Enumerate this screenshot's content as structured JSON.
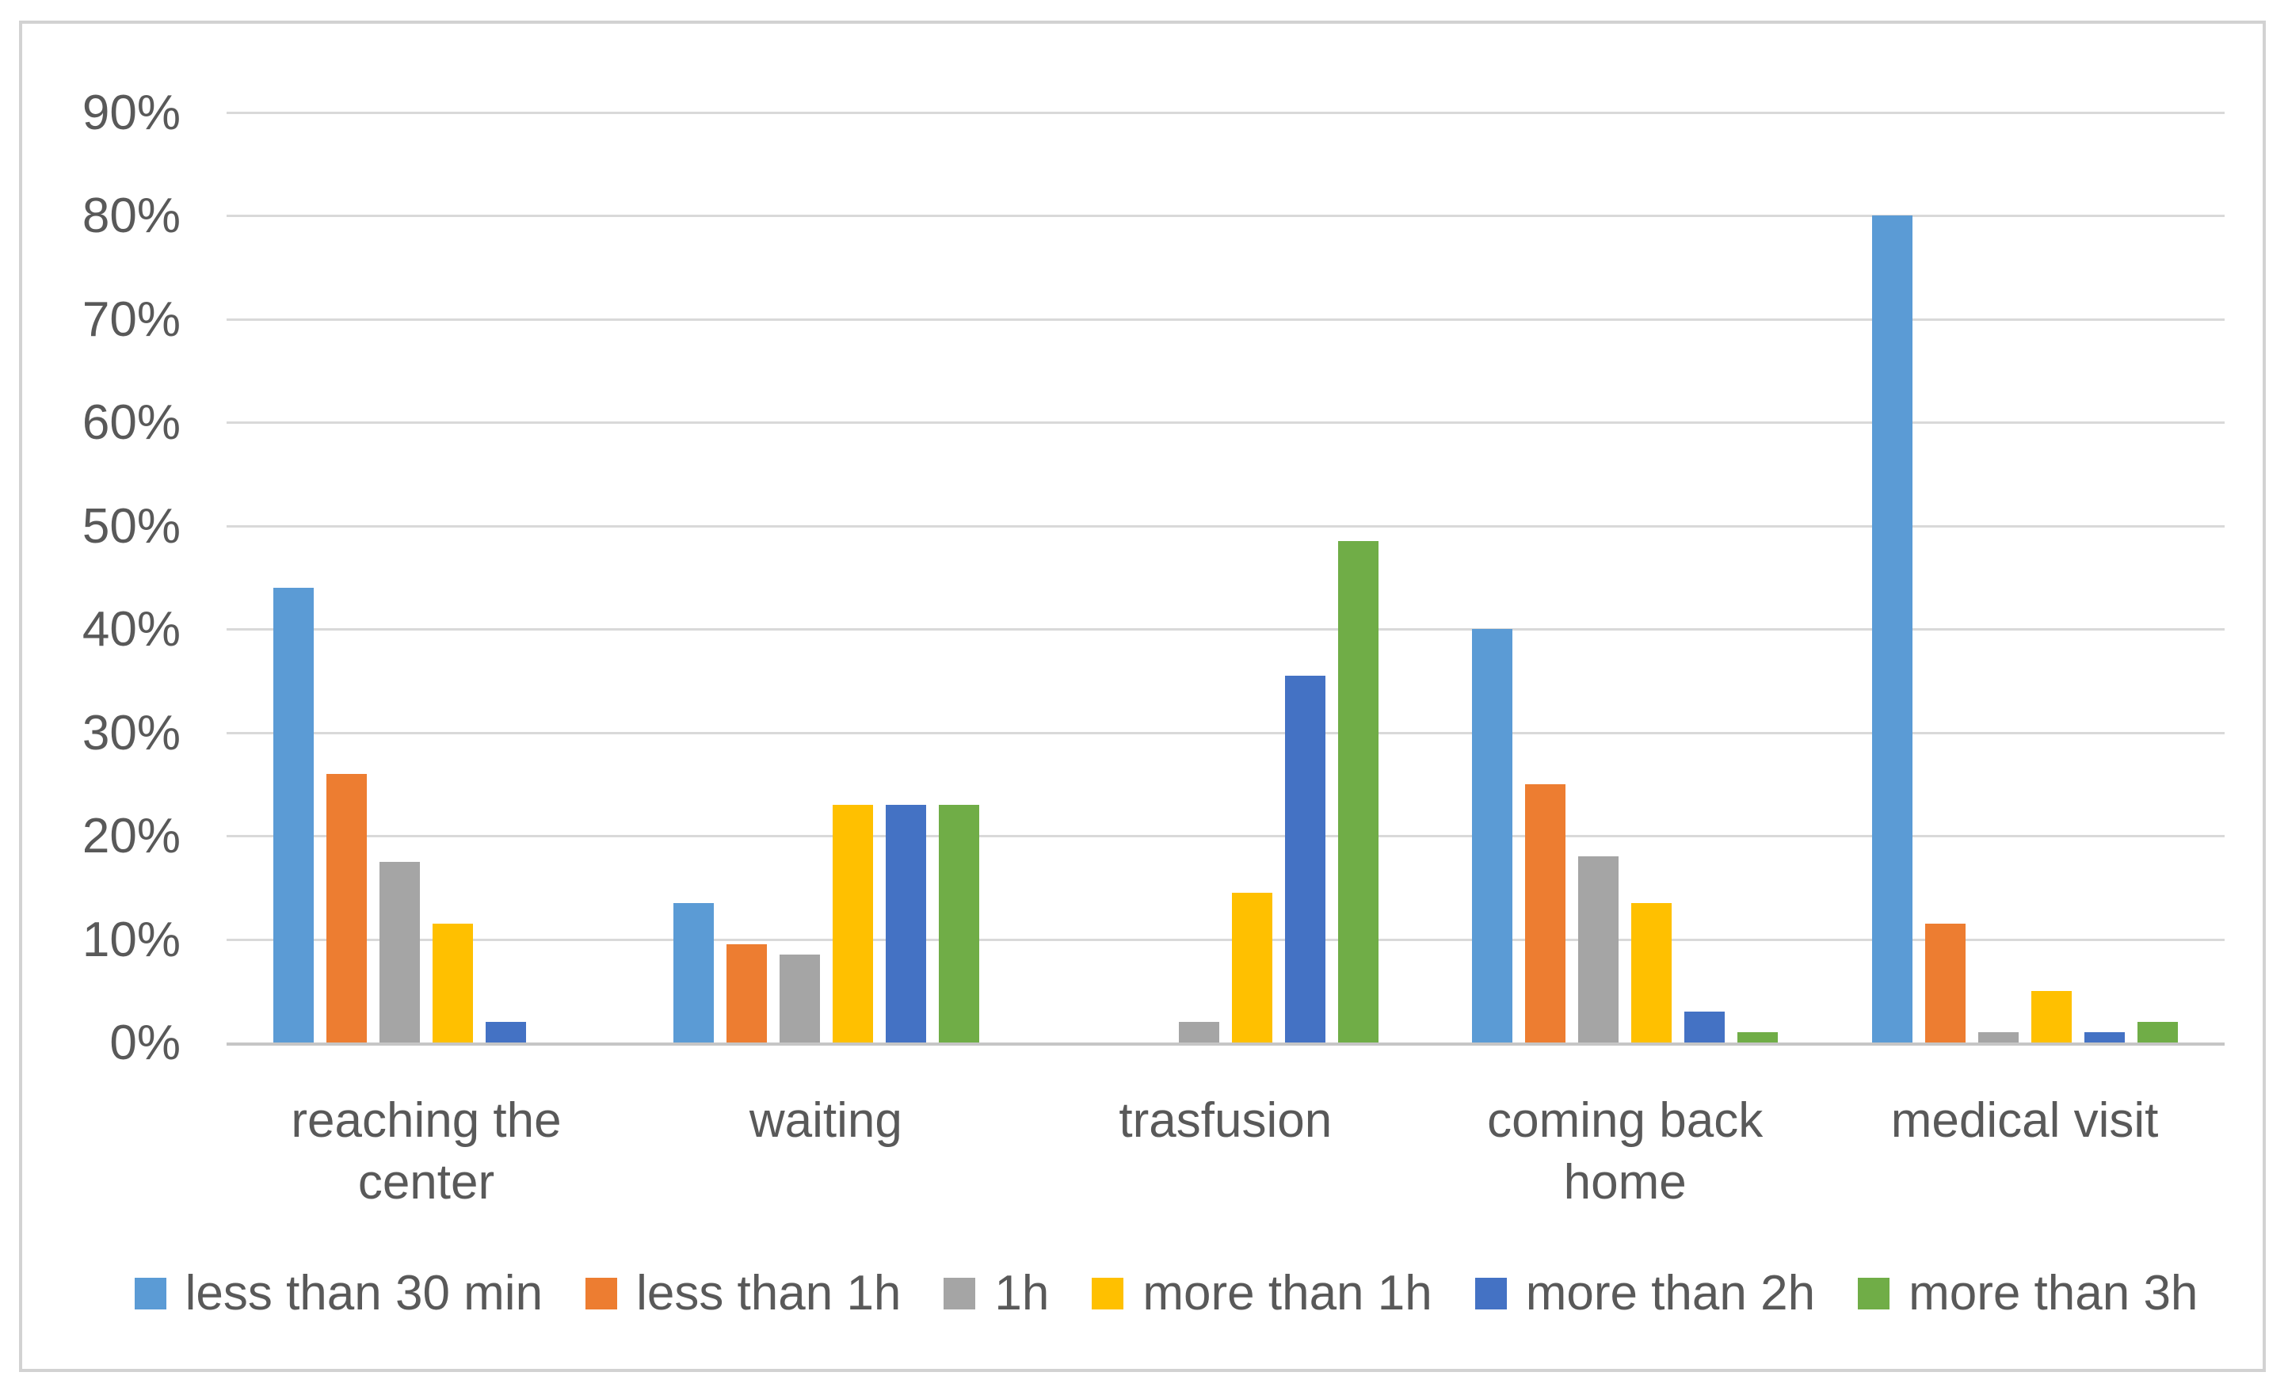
{
  "chart_data": {
    "type": "bar",
    "title": "",
    "xlabel": "",
    "ylabel": "",
    "categories": [
      "reaching the center",
      "waiting",
      "trasfusion",
      "coming back home",
      "medical visit"
    ],
    "series": [
      {
        "name": "less than 30 min",
        "color": "#5B9BD5",
        "values": [
          44,
          13.5,
          0,
          40,
          80
        ]
      },
      {
        "name": "less than 1h",
        "color": "#ED7D31",
        "values": [
          26,
          9.5,
          0,
          25,
          11.5
        ]
      },
      {
        "name": "1h",
        "color": "#A5A5A5",
        "values": [
          17.5,
          8.5,
          2,
          18,
          1
        ]
      },
      {
        "name": "more than 1h",
        "color": "#FFC000",
        "values": [
          11.5,
          23,
          14.5,
          13.5,
          5
        ]
      },
      {
        "name": "more than 2h",
        "color": "#4472C4",
        "values": [
          2,
          23,
          35.5,
          3,
          1
        ]
      },
      {
        "name": "more than 3h",
        "color": "#70AD47",
        "values": [
          0,
          23,
          48.5,
          1,
          2
        ]
      }
    ],
    "y_axis": {
      "min": 0,
      "max": 90,
      "tick_step": 10,
      "tick_labels": [
        "0%",
        "10%",
        "20%",
        "30%",
        "40%",
        "50%",
        "60%",
        "70%",
        "80%",
        "90%"
      ],
      "grid": true
    },
    "legend_position": "bottom",
    "colors": {
      "grid": "#d9d9d9",
      "axis": "#c6c6c6",
      "text": "#595959",
      "frame_border": "#d2d2d2",
      "background": "#ffffff"
    }
  }
}
